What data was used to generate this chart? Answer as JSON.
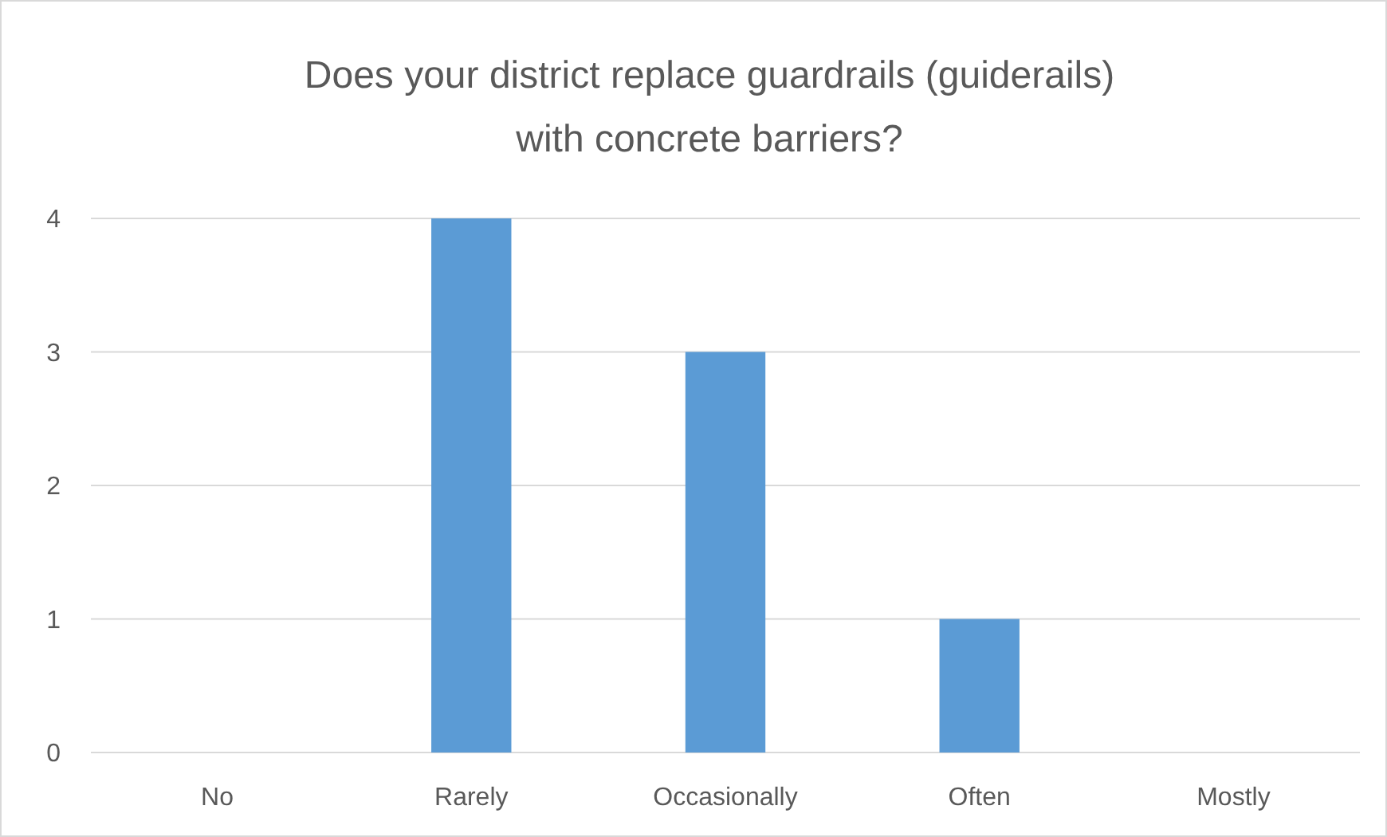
{
  "chart_data": {
    "type": "bar",
    "title": "Does your district replace guardrails (guiderails)\nwith concrete barriers?",
    "categories": [
      "No",
      "Rarely",
      "Occasionally",
      "Often",
      "Mostly"
    ],
    "values": [
      0,
      4,
      3,
      1,
      0
    ],
    "color": "#5b9bd5",
    "ylim": [
      0,
      4
    ],
    "yticks": [
      0,
      1,
      2,
      3,
      4
    ],
    "grid": "y"
  }
}
